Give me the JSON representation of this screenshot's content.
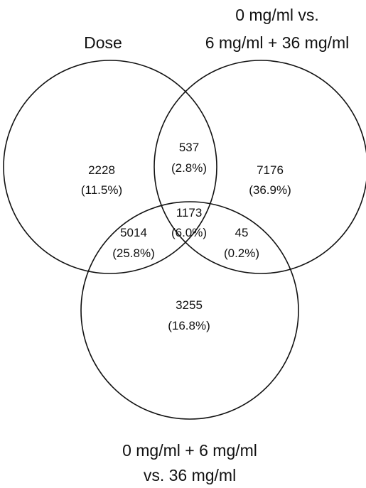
{
  "sets": [
    {
      "id": "dose",
      "label_lines": [
        "Dose"
      ]
    },
    {
      "id": "zero_vs_6_36",
      "label_lines": [
        "0 mg/ml vs.",
        "6 mg/ml + 36 mg/ml"
      ]
    },
    {
      "id": "zero_6_vs_36",
      "label_lines": [
        "0 mg/ml + 6 mg/ml",
        "vs. 36 mg/ml"
      ]
    }
  ],
  "regions": {
    "dose_only": {
      "count": "2228",
      "percent": "(11.5%)"
    },
    "dose_and_zero_vs_6_36": {
      "count": "537",
      "percent": "(2.8%)"
    },
    "zero_vs_6_36_only": {
      "count": "7176",
      "percent": "(36.9%)"
    },
    "all_three": {
      "count": "1173",
      "percent": "(6.0%)"
    },
    "dose_and_zero_6_vs_36": {
      "count": "5014",
      "percent": "(25.8%)"
    },
    "zero_vs_6_36_and_zero_6_vs_36": {
      "count": "45",
      "percent": "(0.2%)"
    },
    "zero_6_vs_36_only": {
      "count": "3255",
      "percent": "(16.8%)"
    }
  },
  "colors": {
    "stroke": "#111111",
    "background": "#ffffff"
  }
}
